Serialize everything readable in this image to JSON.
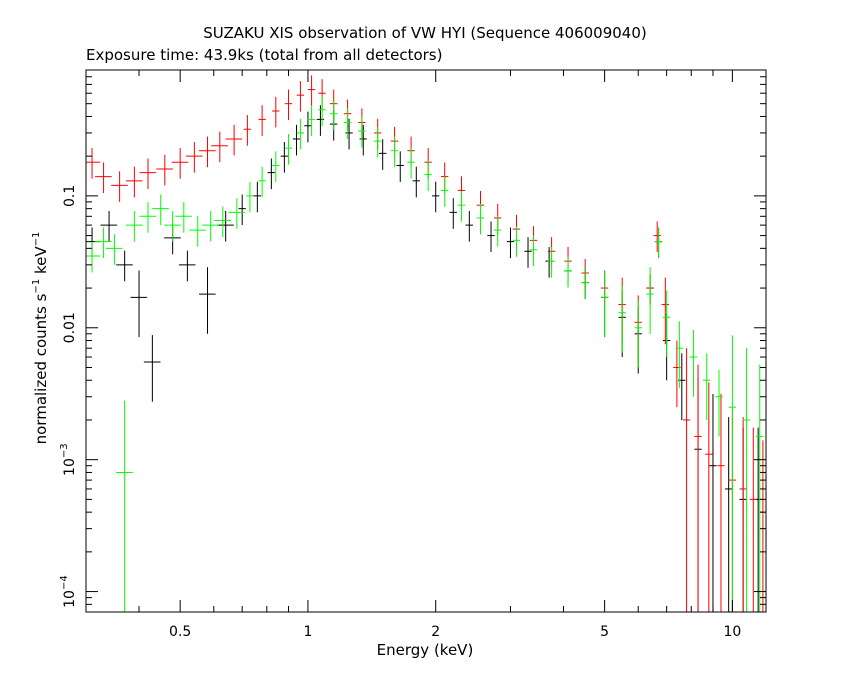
{
  "chart_data": {
    "type": "scatter",
    "title": "SUZAKU XIS observation of VW HYI (Sequence 406009040)",
    "subtitle": "Exposure time: 43.9ks (total from all detectors)",
    "xlabel": "Energy (keV)",
    "ylabel": {
      "prefix": "normalized counts s",
      "sup1": "−1",
      "middle": " keV",
      "sup2": "−1"
    },
    "x_scale": "log",
    "y_scale": "log",
    "xlim": [
      0.3,
      12
    ],
    "ylim": [
      7e-05,
      0.9
    ],
    "grid": false,
    "x_ticks": [
      {
        "value": 0.5,
        "label": "0.5"
      },
      {
        "value": 1,
        "label": "1"
      },
      {
        "value": 2,
        "label": "2"
      },
      {
        "value": 5,
        "label": "5"
      },
      {
        "value": 10,
        "label": "10"
      }
    ],
    "y_ticks": [
      {
        "value": 0.0001,
        "base": "10",
        "exp": "−4"
      },
      {
        "value": 0.001,
        "base": "10",
        "exp": "−3"
      },
      {
        "value": 0.01,
        "label": "0.01"
      },
      {
        "value": 0.1,
        "label": "0.1"
      }
    ],
    "series": [
      {
        "color": "#000000",
        "points": [
          [
            0.31,
            0.045
          ],
          [
            0.34,
            0.06
          ],
          [
            0.37,
            0.03
          ],
          [
            0.4,
            0.017
          ],
          [
            0.43,
            0.0055
          ],
          [
            0.48,
            0.048
          ],
          [
            0.52,
            0.03
          ],
          [
            0.58,
            0.018
          ],
          [
            0.64,
            0.06
          ],
          [
            0.7,
            0.08
          ],
          [
            0.76,
            0.1
          ],
          [
            0.82,
            0.15
          ],
          [
            0.88,
            0.2
          ],
          [
            0.94,
            0.27
          ],
          [
            1.0,
            0.34
          ],
          [
            1.07,
            0.38
          ],
          [
            1.15,
            0.35
          ],
          [
            1.25,
            0.3
          ],
          [
            1.35,
            0.27
          ],
          [
            1.5,
            0.21
          ],
          [
            1.65,
            0.17
          ],
          [
            1.8,
            0.13
          ],
          [
            2.0,
            0.1
          ],
          [
            2.2,
            0.075
          ],
          [
            2.4,
            0.06
          ],
          [
            2.7,
            0.05
          ],
          [
            3.0,
            0.045
          ],
          [
            3.3,
            0.038
          ],
          [
            3.7,
            0.032
          ],
          [
            4.1,
            0.027
          ],
          [
            4.5,
            0.022
          ],
          [
            5.0,
            0.017
          ],
          [
            5.5,
            0.012
          ],
          [
            6.0,
            0.009
          ],
          [
            6.4,
            0.02
          ],
          [
            6.7,
            0.045
          ],
          [
            7.0,
            0.008
          ],
          [
            7.6,
            0.004
          ],
          [
            8.3,
            0.0012
          ],
          [
            9.0,
            0.0009
          ],
          [
            9.8,
            0.0006
          ],
          [
            10.6,
            0.0005
          ],
          [
            11.5,
            0.0005
          ]
        ]
      },
      {
        "color": "#ff0000",
        "points": [
          [
            0.31,
            0.18
          ],
          [
            0.33,
            0.14
          ],
          [
            0.36,
            0.12
          ],
          [
            0.39,
            0.13
          ],
          [
            0.42,
            0.15
          ],
          [
            0.46,
            0.16
          ],
          [
            0.5,
            0.18
          ],
          [
            0.54,
            0.2
          ],
          [
            0.58,
            0.22
          ],
          [
            0.62,
            0.24
          ],
          [
            0.67,
            0.27
          ],
          [
            0.72,
            0.32
          ],
          [
            0.78,
            0.38
          ],
          [
            0.84,
            0.44
          ],
          [
            0.9,
            0.5
          ],
          [
            0.96,
            0.58
          ],
          [
            1.02,
            0.64
          ],
          [
            1.08,
            0.6
          ],
          [
            1.15,
            0.5
          ],
          [
            1.24,
            0.42
          ],
          [
            1.34,
            0.36
          ],
          [
            1.46,
            0.3
          ],
          [
            1.6,
            0.26
          ],
          [
            1.75,
            0.22
          ],
          [
            1.92,
            0.18
          ],
          [
            2.1,
            0.14
          ],
          [
            2.3,
            0.11
          ],
          [
            2.55,
            0.085
          ],
          [
            2.8,
            0.068
          ],
          [
            3.1,
            0.056
          ],
          [
            3.4,
            0.046
          ],
          [
            3.75,
            0.038
          ],
          [
            4.1,
            0.032
          ],
          [
            4.5,
            0.026
          ],
          [
            5.0,
            0.02
          ],
          [
            5.5,
            0.015
          ],
          [
            6.0,
            0.011
          ],
          [
            6.4,
            0.02
          ],
          [
            6.65,
            0.05
          ],
          [
            6.95,
            0.015
          ],
          [
            7.4,
            0.005
          ],
          [
            7.8,
            0.002
          ],
          [
            8.3,
            0.0015
          ],
          [
            8.8,
            0.0011
          ],
          [
            9.4,
            0.0009
          ],
          [
            10.0,
            0.0007
          ],
          [
            10.6,
            0.0006
          ],
          [
            11.2,
            0.0005
          ],
          [
            11.8,
            0.0004
          ]
        ]
      },
      {
        "color": "#00ff00",
        "points": [
          [
            0.31,
            0.035
          ],
          [
            0.33,
            0.045
          ],
          [
            0.35,
            0.04
          ],
          [
            0.37,
            0.0008
          ],
          [
            0.39,
            0.06
          ],
          [
            0.42,
            0.07
          ],
          [
            0.45,
            0.08
          ],
          [
            0.48,
            0.06
          ],
          [
            0.51,
            0.07
          ],
          [
            0.55,
            0.055
          ],
          [
            0.59,
            0.06
          ],
          [
            0.63,
            0.065
          ],
          [
            0.68,
            0.075
          ],
          [
            0.73,
            0.1
          ],
          [
            0.78,
            0.13
          ],
          [
            0.84,
            0.17
          ],
          [
            0.9,
            0.23
          ],
          [
            0.96,
            0.3
          ],
          [
            1.02,
            0.38
          ],
          [
            1.08,
            0.45
          ],
          [
            1.15,
            0.42
          ],
          [
            1.24,
            0.36
          ],
          [
            1.34,
            0.31
          ],
          [
            1.46,
            0.26
          ],
          [
            1.6,
            0.22
          ],
          [
            1.75,
            0.18
          ],
          [
            1.92,
            0.145
          ],
          [
            2.1,
            0.11
          ],
          [
            2.3,
            0.085
          ],
          [
            2.55,
            0.068
          ],
          [
            2.8,
            0.055
          ],
          [
            3.1,
            0.046
          ],
          [
            3.4,
            0.039
          ],
          [
            3.75,
            0.032
          ],
          [
            4.1,
            0.027
          ],
          [
            4.5,
            0.022
          ],
          [
            5.0,
            0.017
          ],
          [
            5.5,
            0.013
          ],
          [
            6.0,
            0.01
          ],
          [
            6.4,
            0.018
          ],
          [
            6.7,
            0.045
          ],
          [
            7.0,
            0.012
          ],
          [
            7.5,
            0.007
          ],
          [
            8.1,
            0.006
          ],
          [
            8.7,
            0.004
          ],
          [
            9.3,
            0.003
          ],
          [
            10.0,
            0.0025
          ],
          [
            10.8,
            0.002
          ],
          [
            11.6,
            0.0015
          ]
        ]
      }
    ]
  }
}
